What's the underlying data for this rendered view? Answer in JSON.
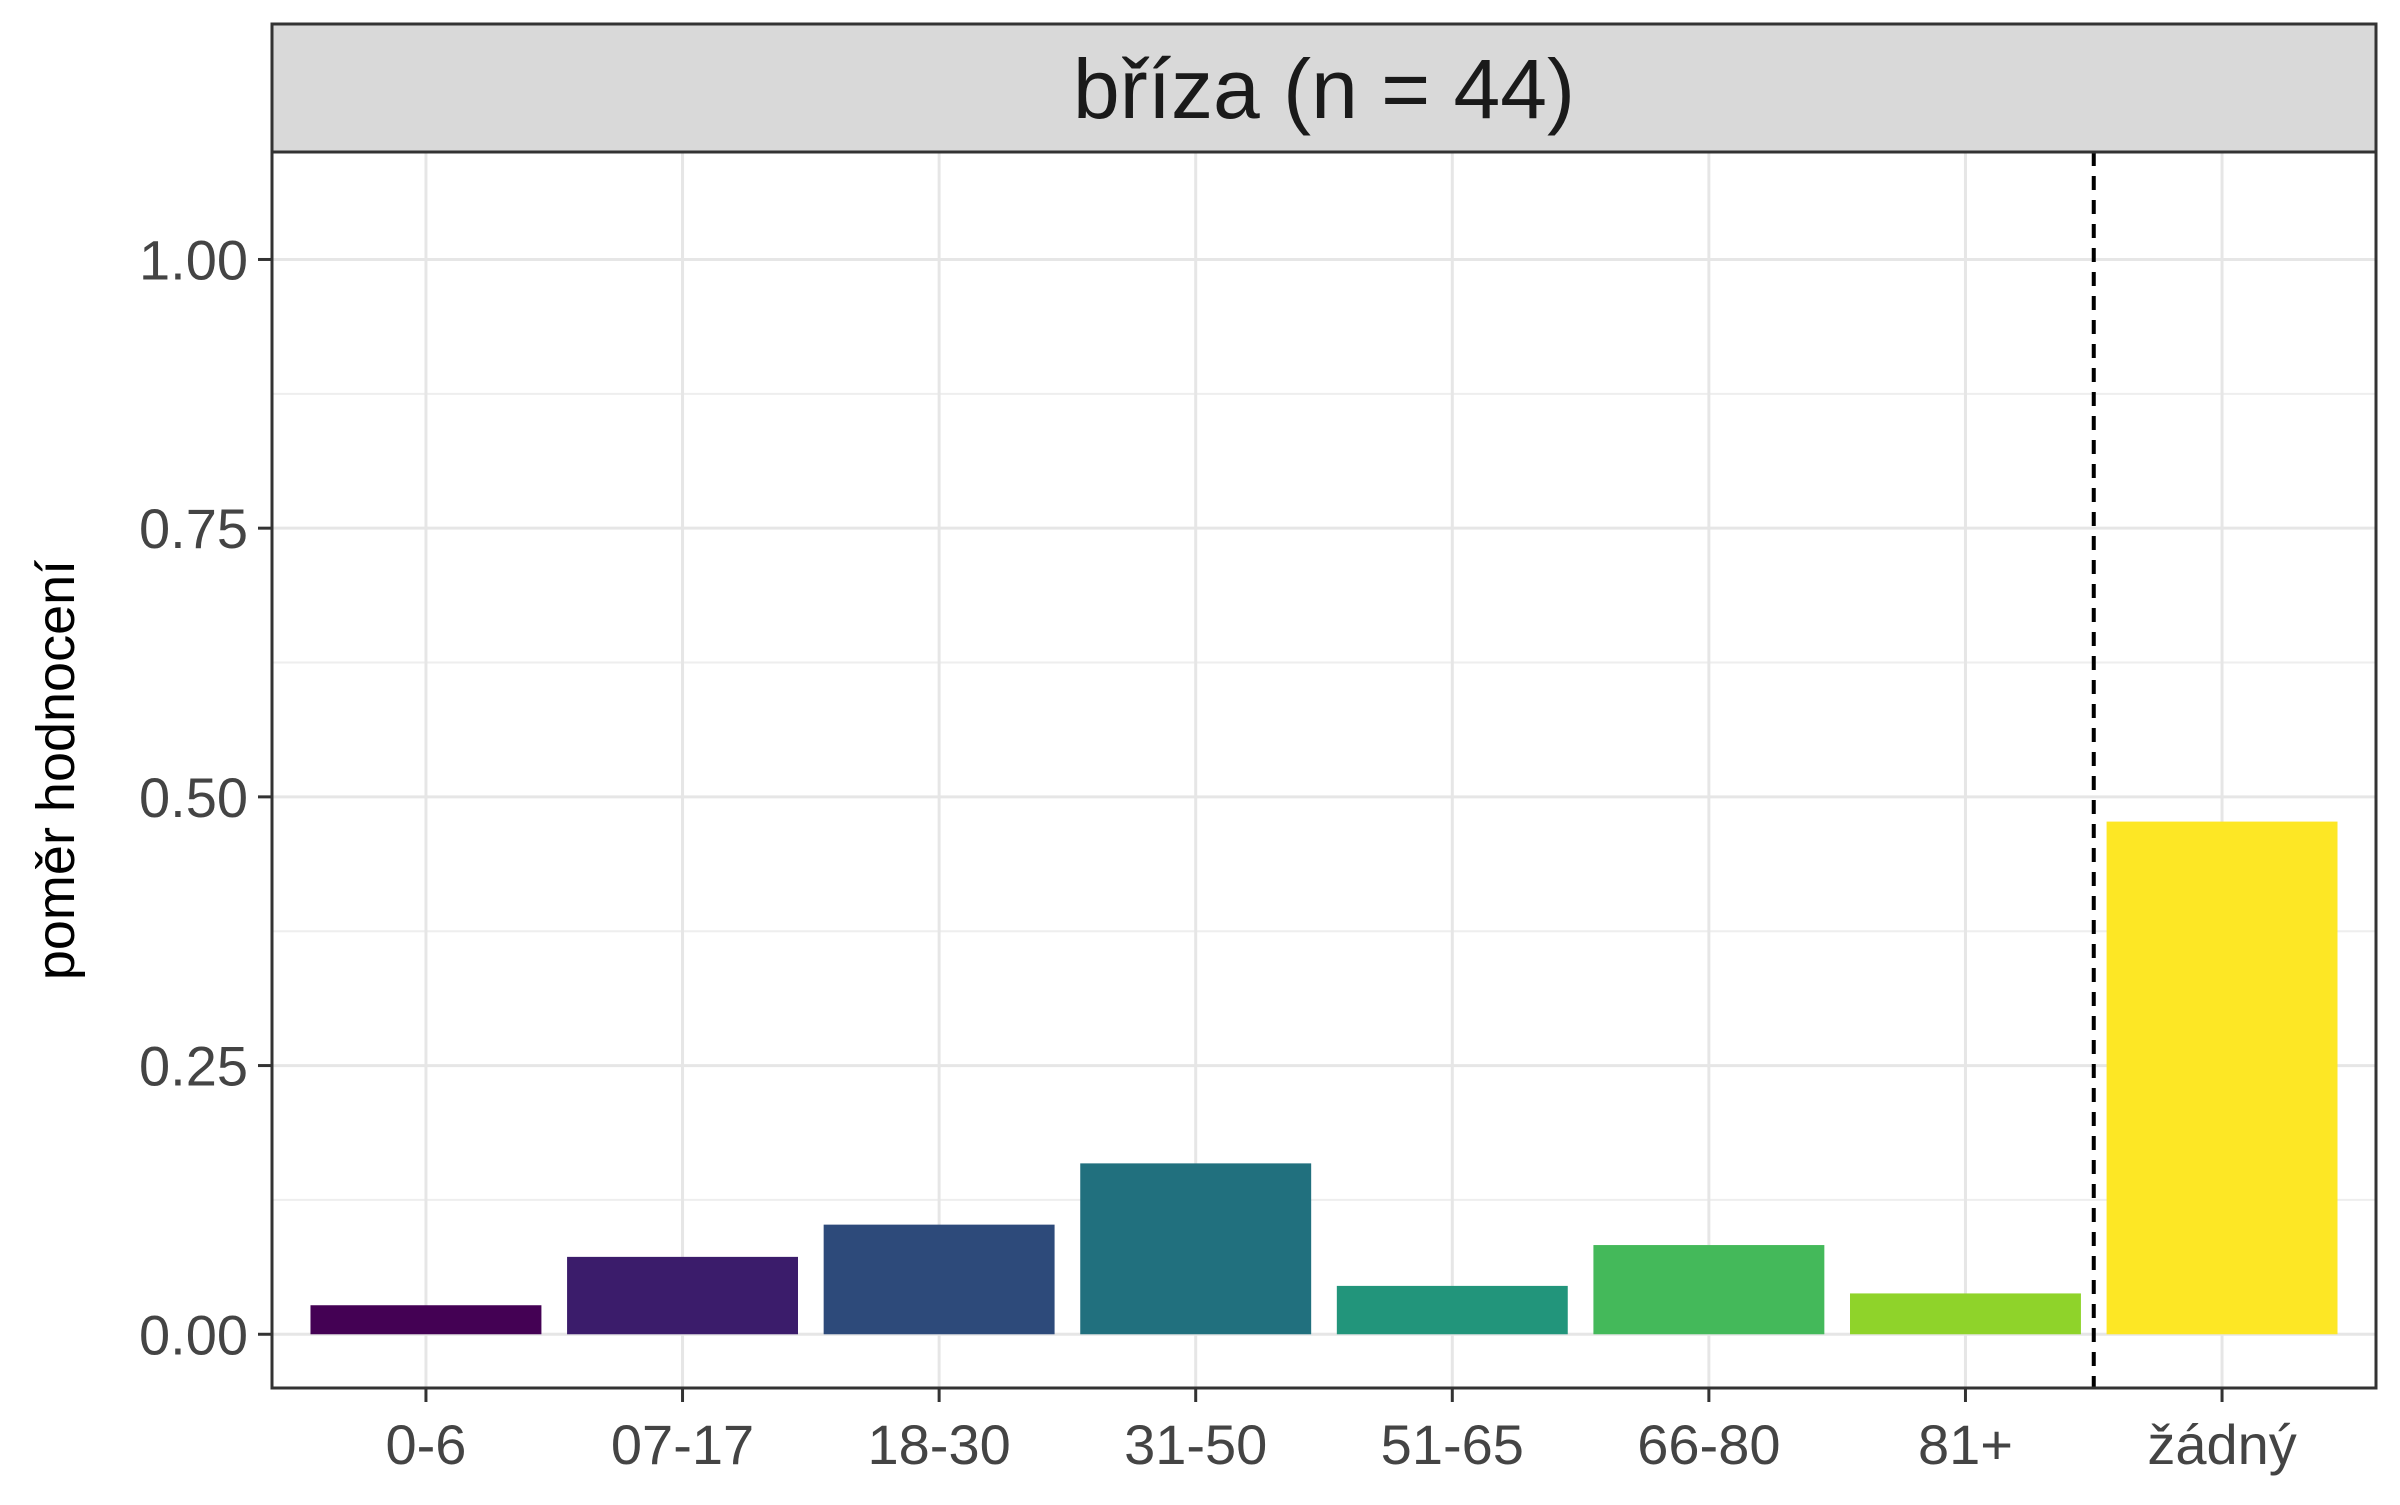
{
  "chart_data": {
    "type": "bar",
    "facet_title": "bříza (n = 44)",
    "xlabel": "",
    "ylabel": "poměr hodnocení",
    "categories": [
      "0-6",
      "07-17",
      "18-30",
      "31-50",
      "51-65",
      "66-80",
      "81+",
      "žádný"
    ],
    "values": [
      0.027,
      0.072,
      0.102,
      0.159,
      0.045,
      0.083,
      0.038,
      0.477
    ],
    "colors": [
      "#440154",
      "#3b1c6b",
      "#2d4a7a",
      "#21707e",
      "#22957b",
      "#44b95a",
      "#8fd32a",
      "#fde725"
    ],
    "yticks": [
      0.0,
      0.25,
      0.5,
      0.75,
      1.0
    ],
    "ytick_labels": [
      "0.00",
      "0.25",
      "0.50",
      "0.75",
      "1.00"
    ],
    "ylim": [
      -0.05,
      1.1
    ],
    "separator": "dashed line between 81+ and žádný",
    "grid": true,
    "legend": "none"
  }
}
